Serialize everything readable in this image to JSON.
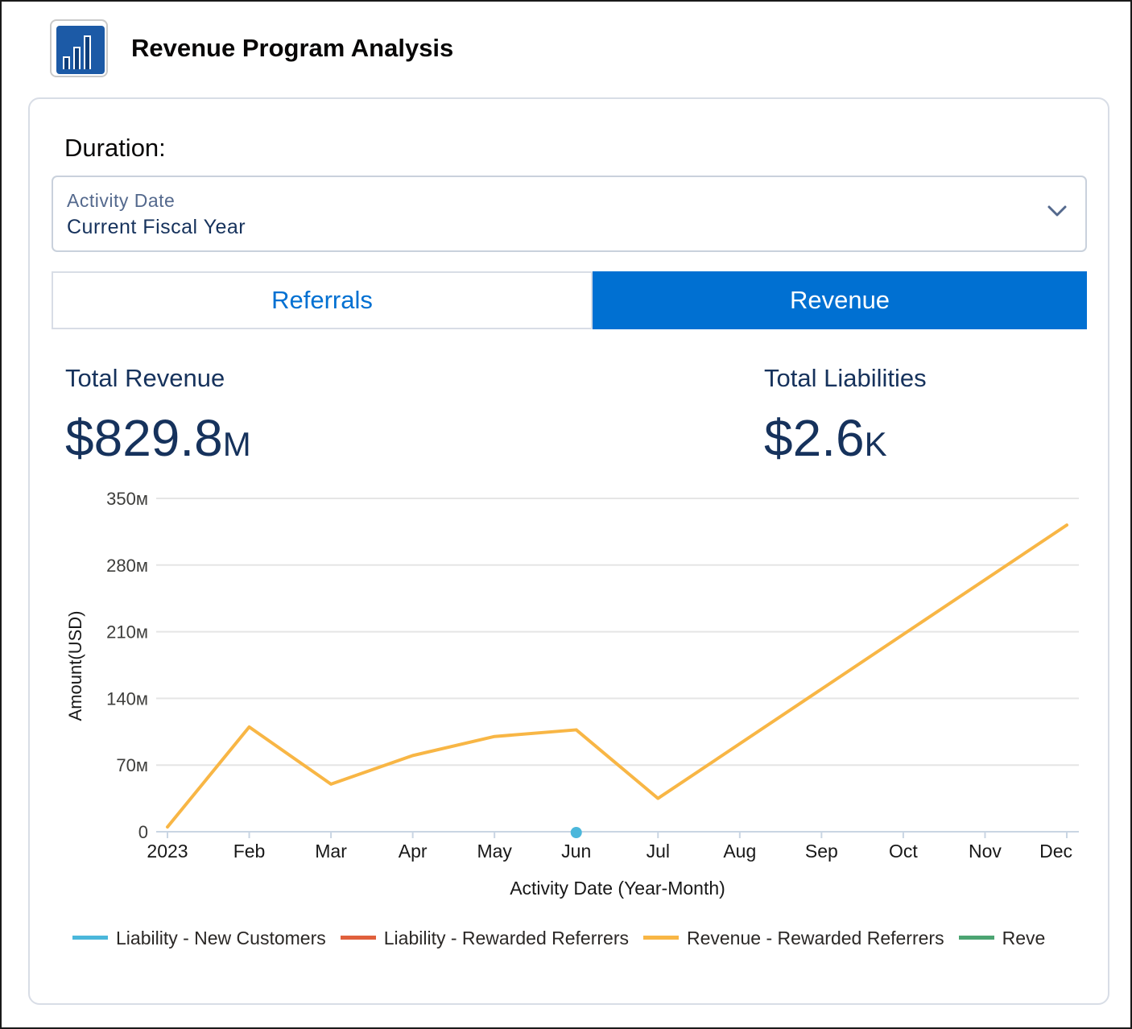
{
  "app": {
    "title": "Revenue Program Analysis",
    "icon": "bar-chart-icon"
  },
  "filter": {
    "label": "Duration:",
    "field_label": "Activity Date",
    "field_value": "Current Fiscal Year"
  },
  "tabs": [
    {
      "label": "Referrals",
      "active": false
    },
    {
      "label": "Revenue",
      "active": true
    }
  ],
  "metrics": {
    "total_revenue": {
      "label": "Total Revenue",
      "value": "$829.8",
      "unit": "M"
    },
    "total_liabilities": {
      "label": "Total Liabilities",
      "value": "$2.6",
      "unit": "K"
    }
  },
  "colors": {
    "accent": "#0070d2",
    "navy": "#16325c",
    "series_liability_new": "#4bb7db",
    "series_liability_rewarded": "#e0603c",
    "series_revenue_rewarded": "#f8b645",
    "series_revenue_other": "#4ca472"
  },
  "chart_data": {
    "type": "line",
    "xlabel": "Activity Date (Year-Month)",
    "ylabel": "Amount(USD)",
    "ylim": [
      0,
      350
    ],
    "yticks": [
      0,
      70,
      140,
      210,
      280,
      350
    ],
    "ytick_labels": [
      "0",
      "70м",
      "140м",
      "210м",
      "280м",
      "350м"
    ],
    "categories": [
      "2023",
      "Feb",
      "Mar",
      "Apr",
      "May",
      "Jun",
      "Jul",
      "Aug",
      "Sep",
      "Oct",
      "Nov",
      "Dec"
    ],
    "grid": true,
    "legend_position": "bottom",
    "series": [
      {
        "name": "Liability - New Customers",
        "color": "#4bb7db",
        "points": [
          {
            "x": "Jun",
            "y": 0
          }
        ]
      },
      {
        "name": "Liability - Rewarded Referrers",
        "color": "#e0603c",
        "points": []
      },
      {
        "name": "Revenue - Rewarded Referrers",
        "color": "#f8b645",
        "values": [
          5,
          110,
          50,
          80,
          100,
          107,
          35,
          null,
          null,
          null,
          null,
          322
        ],
        "connect_gaps": true
      },
      {
        "name": "Reve",
        "color": "#4ca472",
        "points": []
      }
    ]
  }
}
